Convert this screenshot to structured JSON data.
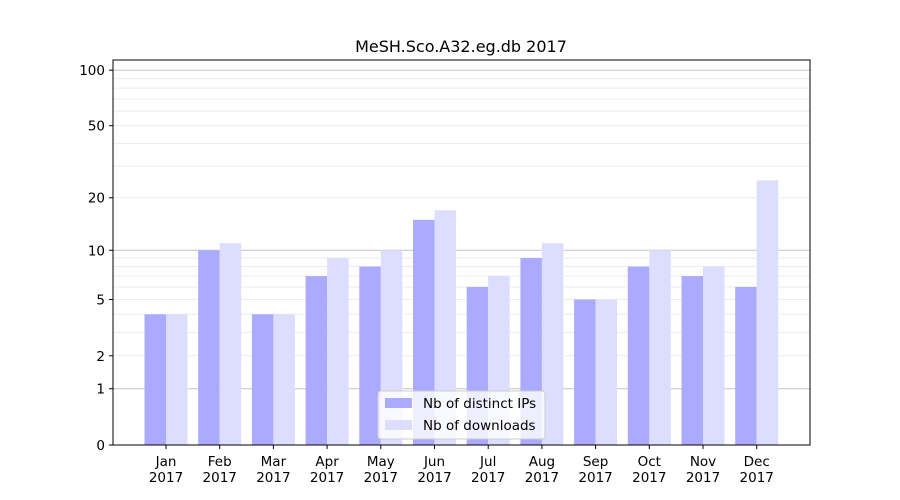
{
  "chart_data": {
    "type": "bar",
    "title": "MeSH.Sco.A32.eg.db 2017",
    "xlabel": "",
    "ylabel": "",
    "yscale": "log10(1+y)",
    "ylim": [
      0,
      116
    ],
    "yticks": [
      0,
      1,
      2,
      5,
      10,
      20,
      50,
      100
    ],
    "yminor": [
      3,
      4,
      6,
      7,
      8,
      9,
      30,
      40,
      60,
      70,
      80,
      90
    ],
    "categories": [
      "Jan\n2017",
      "Feb\n2017",
      "Mar\n2017",
      "Apr\n2017",
      "May\n2017",
      "Jun\n2017",
      "Jul\n2017",
      "Aug\n2017",
      "Sep\n2017",
      "Oct\n2017",
      "Nov\n2017",
      "Dec\n2017"
    ],
    "series": [
      {
        "name": "Nb of distinct IPs",
        "color": "#aaaaff",
        "values": [
          4,
          10,
          4,
          7,
          8,
          15,
          6,
          9,
          5,
          8,
          7,
          6
        ]
      },
      {
        "name": "Nb of downloads",
        "color": "#ddddff",
        "values": [
          4,
          11,
          4,
          9,
          10,
          17,
          7,
          11,
          5,
          10,
          8,
          25
        ]
      }
    ],
    "grid": true,
    "legend": "bottom-center"
  }
}
